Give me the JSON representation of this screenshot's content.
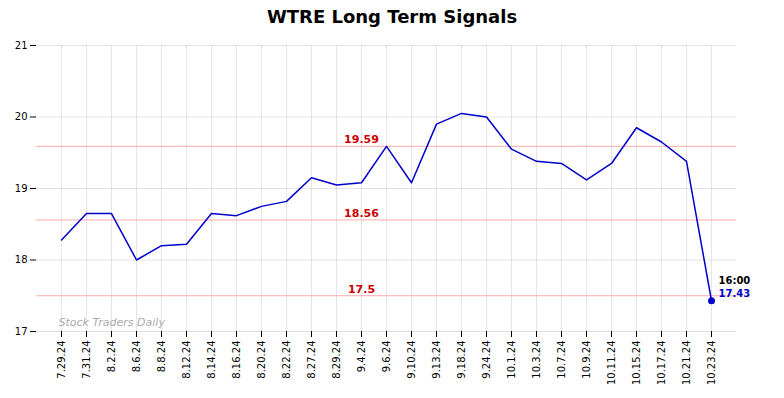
{
  "chart_data": {
    "type": "line",
    "title": "WTRE Long Term Signals",
    "categories": [
      "7.29.24",
      "7.31.24",
      "8.2.24",
      "8.6.24",
      "8.8.24",
      "8.12.24",
      "8.14.24",
      "8.16.24",
      "8.20.24",
      "8.22.24",
      "8.27.24",
      "8.29.24",
      "9.4.24",
      "9.6.24",
      "9.10.24",
      "9.13.24",
      "9.18.24",
      "9.24.24",
      "10.1.24",
      "10.3.24",
      "10.7.24",
      "10.9.24",
      "10.11.24",
      "10.15.24",
      "10.17.24",
      "10.21.24",
      "10.23.24"
    ],
    "values": [
      18.28,
      18.65,
      18.65,
      18.0,
      18.2,
      18.22,
      18.65,
      18.62,
      18.75,
      18.82,
      19.15,
      19.05,
      19.08,
      19.59,
      19.08,
      19.9,
      20.05,
      20.0,
      19.55,
      19.38,
      19.35,
      19.12,
      19.35,
      19.85,
      19.65,
      19.38,
      17.43
    ],
    "color": "#0000cc",
    "hlines": [
      {
        "value": 19.59,
        "label": "19.59",
        "color": "#ffaaaa",
        "label_color": "#cc0000"
      },
      {
        "value": 18.56,
        "label": "18.56",
        "color": "#ffaaaa",
        "label_color": "#cc0000"
      },
      {
        "value": 17.5,
        "label": "17.5",
        "color": "#ffaaaa",
        "label_color": "#cc0000"
      }
    ],
    "annotations": [
      {
        "text": "16:00",
        "x": "10.23.24",
        "y": 17.43,
        "color": "#000000"
      },
      {
        "text": "17.43",
        "x": "10.23.24",
        "y": 17.43,
        "color": "#0000cc"
      }
    ],
    "watermark": {
      "text": "Stock Traders Daily",
      "color": "#aaaaaa"
    },
    "ylim": [
      17.0,
      21.0
    ],
    "yticks": [
      17,
      18,
      19,
      20,
      21
    ],
    "grid": true
  }
}
